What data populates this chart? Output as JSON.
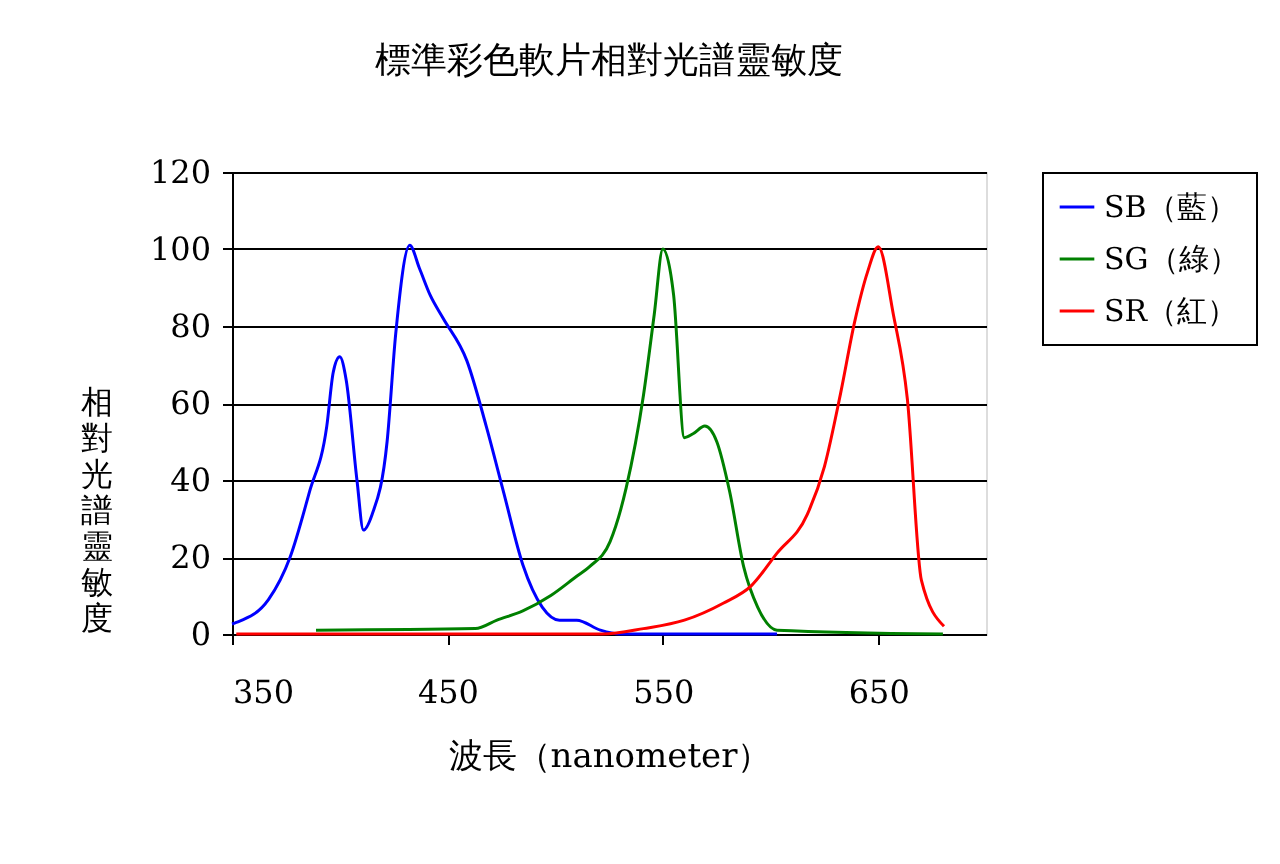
{
  "chart_data": {
    "type": "line",
    "title": "標準彩色軟片相對光譜靈敏度",
    "xlabel": "波長（nanometer）",
    "ylabel": "相對光譜靈敏度",
    "xlim": [
      350,
      700
    ],
    "xticks": [
      350,
      450,
      550,
      650
    ],
    "ylim": [
      0,
      120
    ],
    "yticks": [
      0,
      20,
      40,
      60,
      80,
      100,
      120
    ],
    "grid": "y",
    "legend": "right",
    "series": [
      {
        "name": "SB（藍）",
        "color": "#0000ff",
        "x": [
          350,
          352,
          367,
          377,
          386,
          394,
          397,
          400,
          403,
          408,
          411,
          415,
          422,
          426,
          432.5,
          437,
          442,
          448,
          459,
          468,
          476,
          485,
          494,
          502,
          510,
          521,
          530,
          603
        ],
        "values": [
          2.6,
          3,
          9,
          20,
          37,
          54,
          68,
          72,
          66,
          40,
          27,
          31,
          50,
          78,
          101,
          95,
          88,
          82,
          71,
          54,
          37,
          18,
          7,
          3.6,
          3.6,
          1,
          0,
          0
        ]
      },
      {
        "name": "SG（綠）",
        "color": "#008000",
        "x": [
          389,
          463,
          473,
          485,
          498,
          510,
          516,
          525.5,
          533,
          541,
          546,
          550,
          555,
          560,
          564,
          569.5,
          575,
          581,
          587.5,
          594,
          603,
          680
        ],
        "values": [
          1,
          1.4,
          3.6,
          6,
          10,
          15,
          17.5,
          24,
          38,
          62,
          83,
          100,
          88,
          51,
          52,
          54,
          50,
          37,
          17.5,
          7,
          1,
          0
        ]
      },
      {
        "name": "SR（紅）",
        "color": "#ff0000",
        "x": [
          352,
          522,
          541,
          560,
          578,
          591,
          603,
          617,
          625,
          632.5,
          639,
          645,
          650,
          657,
          663.5,
          670,
          680.5
        ],
        "values": [
          0,
          0,
          1.4,
          3.6,
          8,
          12.5,
          21,
          31,
          43.5,
          62.5,
          81,
          94,
          100.6,
          83,
          61,
          14,
          2
        ]
      }
    ]
  }
}
